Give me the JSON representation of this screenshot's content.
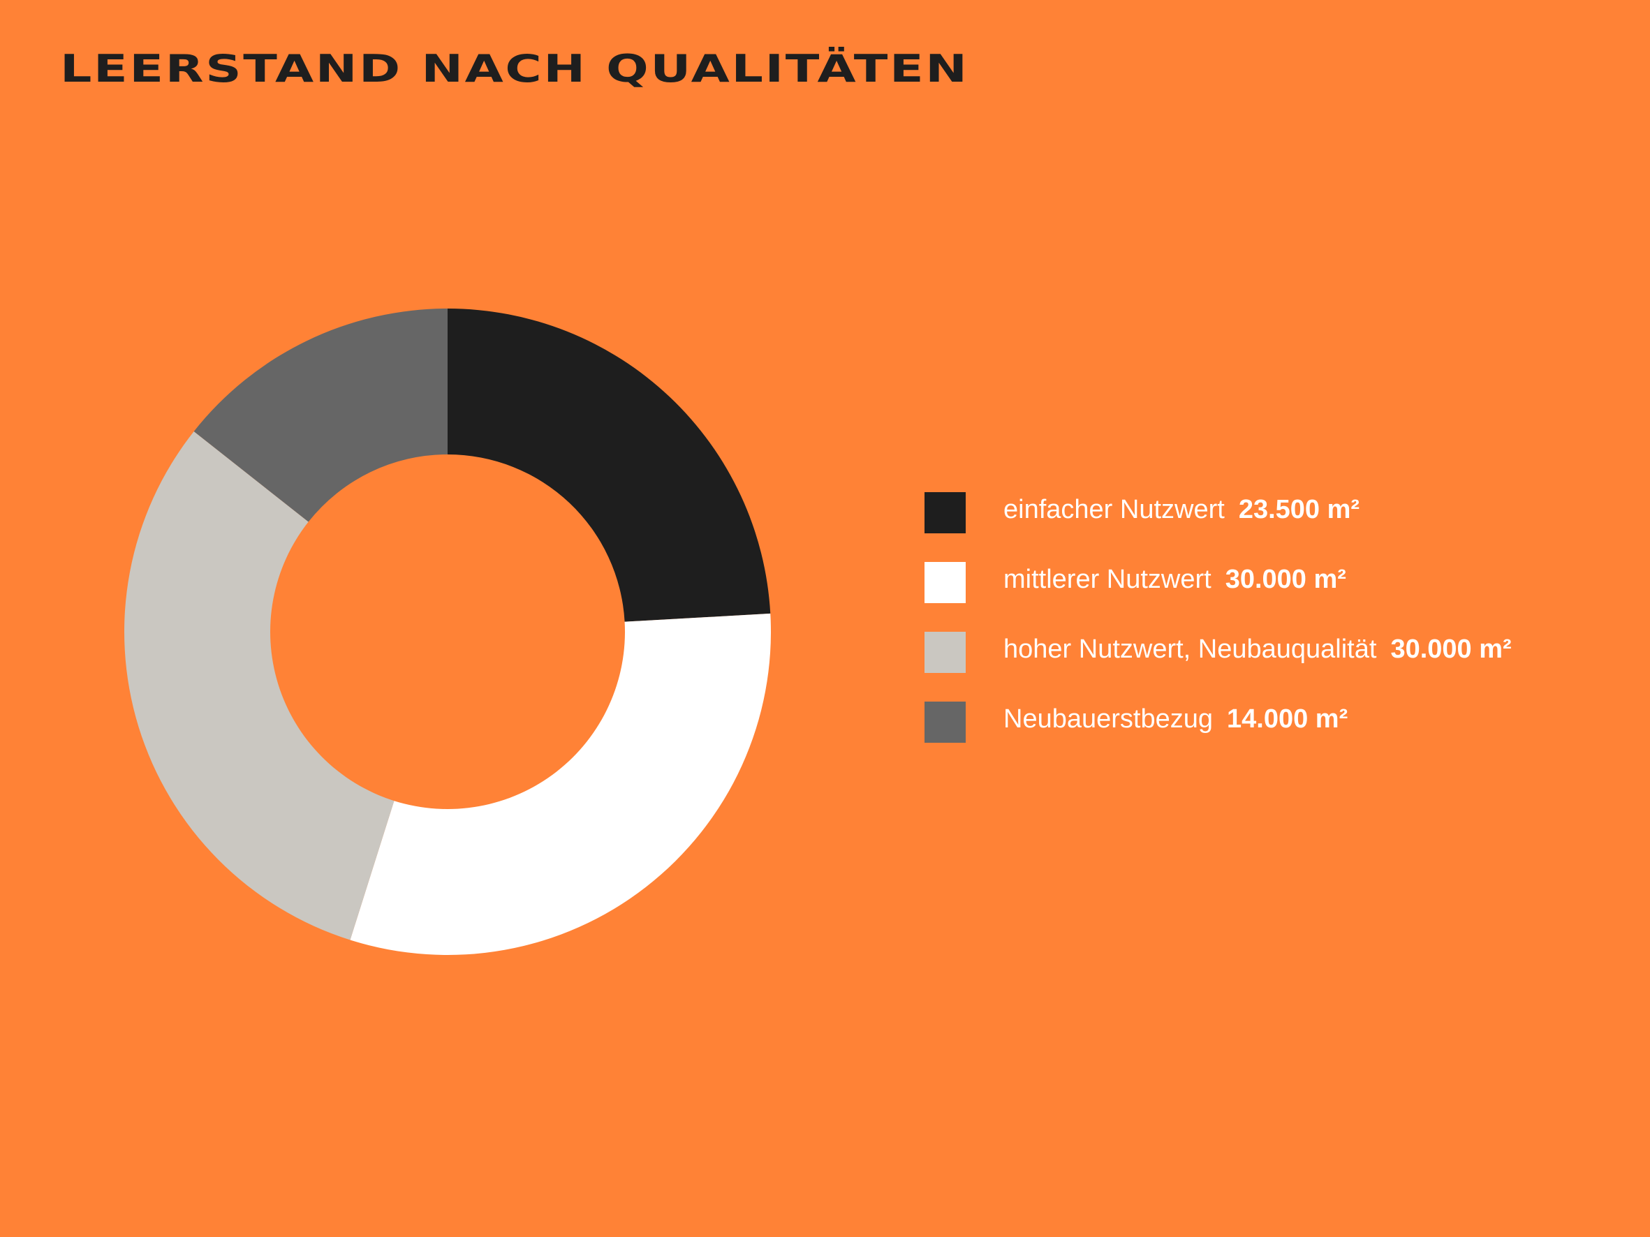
{
  "title": "LEERSTAND NACH QUALITÄTEN",
  "chart_data": {
    "type": "pie",
    "variant": "donut",
    "title": "LEERSTAND NACH QUALITÄTEN",
    "unit": "m²",
    "legend_position": "right",
    "series": [
      {
        "name": "einfacher Nutzwert",
        "value": 23500,
        "value_label": "23.500 m²",
        "color": "#1e1e1e"
      },
      {
        "name": "mittlerer Nutzwert",
        "value": 30000,
        "value_label": "30.000 m²",
        "color": "#ffffff"
      },
      {
        "name": "hoher Nutzwert, Neubauqualität",
        "value": 30000,
        "value_label": "30.000 m²",
        "color": "#cac7c1"
      },
      {
        "name": "Neubauerstbezug",
        "value": 14000,
        "value_label": "14.000 m²",
        "color": "#666666"
      }
    ]
  },
  "colors": {
    "background": "#ff8236",
    "title": "#1e1e1e",
    "legend_text": "#ffffff"
  }
}
